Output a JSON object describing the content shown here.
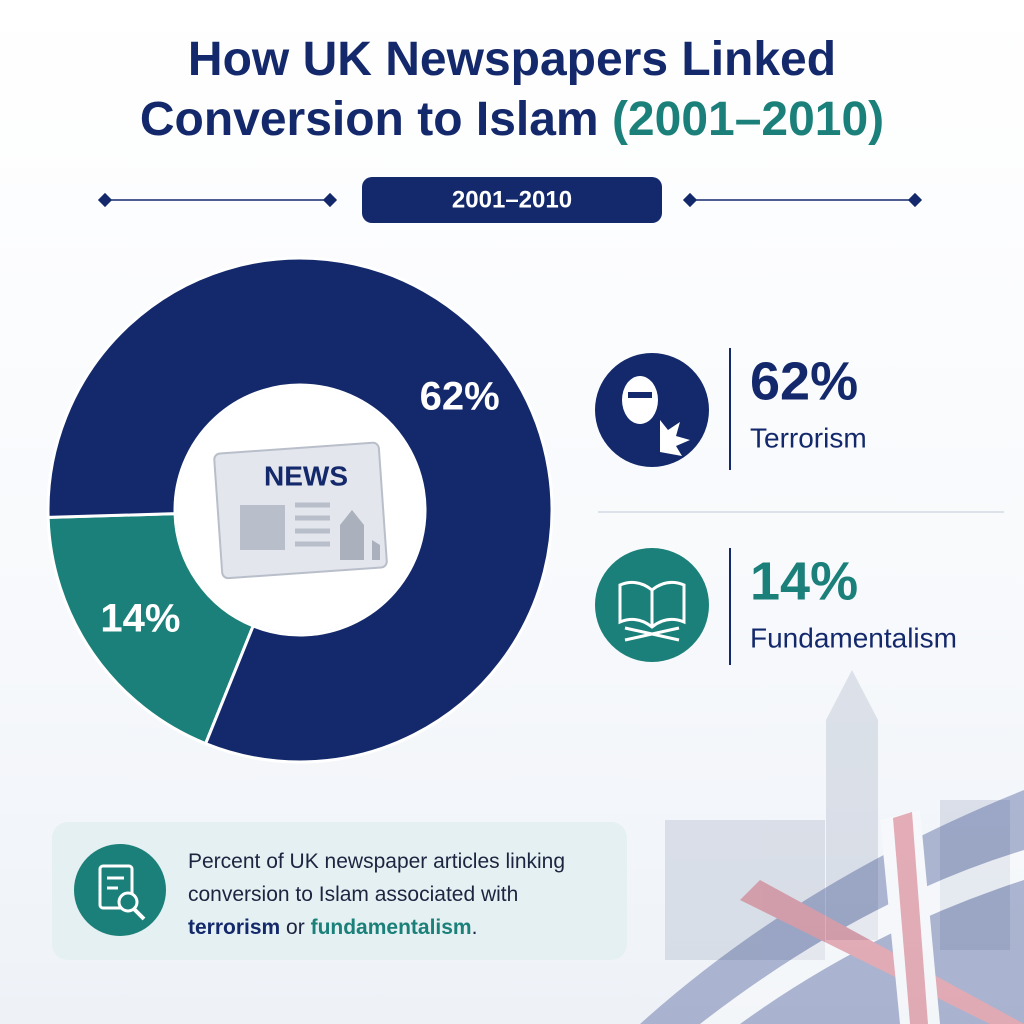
{
  "chart_data": {
    "type": "donut",
    "title": "How UK Newspapers Linked Conversion to Islam",
    "title_highlight": "(2001–2010)",
    "badge": "2001–2010",
    "center_icon_text": "NEWS",
    "categories": [
      "Terrorism",
      "Fundamentalism"
    ],
    "values": [
      62,
      14
    ],
    "value_labels": [
      "62%",
      "14%"
    ],
    "colors": [
      "#14296b",
      "#1b8079"
    ],
    "note": {
      "text": "Percent of UK newspaper articles linking conversion to Islam associated with",
      "term_1": "terrorism",
      "joiner": "or",
      "term_2": "fundamentalism",
      "end": "."
    }
  }
}
